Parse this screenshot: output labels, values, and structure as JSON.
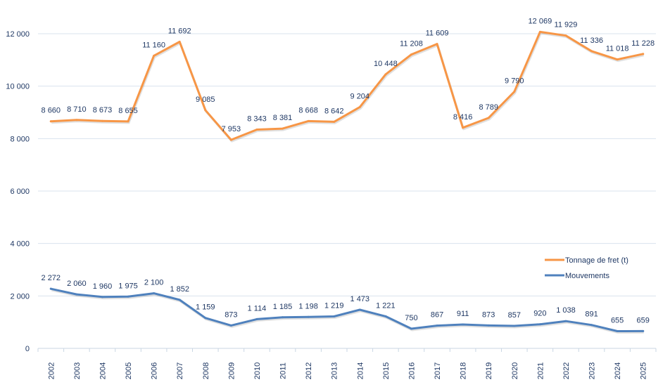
{
  "chart_data": {
    "type": "line",
    "title": "",
    "xlabel": "",
    "ylabel": "",
    "ylim": [
      0,
      12000
    ],
    "yticks": [
      {
        "value": 0,
        "label": "0"
      },
      {
        "value": 2000,
        "label": "2 000"
      },
      {
        "value": 4000,
        "label": "4 000"
      },
      {
        "value": 6000,
        "label": "6 000"
      },
      {
        "value": 8000,
        "label": "8 000"
      },
      {
        "value": 10000,
        "label": "10 000"
      },
      {
        "value": 12000,
        "label": "12 000"
      }
    ],
    "grid": true,
    "legend_position": "right",
    "categories": [
      "2002",
      "2003",
      "2004",
      "2005",
      "2006",
      "2007",
      "2008",
      "2009",
      "2010",
      "2011",
      "2012",
      "2013",
      "2014",
      "2015",
      "2016",
      "2017",
      "2018",
      "2019",
      "2020",
      "2021",
      "2022",
      "2023",
      "2024",
      "2025"
    ],
    "series": [
      {
        "name": "Tonnage de fret (t)",
        "color": "#f79646",
        "values": [
          8660,
          8710,
          8673,
          8655,
          11160,
          11692,
          9085,
          7953,
          8343,
          8381,
          8668,
          8642,
          9204,
          10448,
          11208,
          11609,
          8416,
          8789,
          9790,
          12069,
          11929,
          11336,
          11018,
          11228
        ],
        "labels": [
          "8 660",
          "8 710",
          "8 673",
          "8 655",
          "11 160",
          "11 692",
          "9 085",
          "7 953",
          "8 343",
          "8 381",
          "8 668",
          "8 642",
          "9 204",
          "10 448",
          "11 208",
          "11 609",
          "8 416",
          "8 789",
          "9 790",
          "12 069",
          "11 929",
          "11 336",
          "11 018",
          "11 228"
        ]
      },
      {
        "name": "Mouvements",
        "color": "#4f81bd",
        "values": [
          2272,
          2060,
          1960,
          1975,
          2100,
          1852,
          1159,
          873,
          1114,
          1185,
          1198,
          1219,
          1473,
          1221,
          750,
          867,
          911,
          873,
          857,
          920,
          1038,
          891,
          655,
          659
        ],
        "labels": [
          "2 272",
          "2 060",
          "1 960",
          "1 975",
          "2 100",
          "1 852",
          "1 159",
          "873",
          "1 114",
          "1 185",
          "1 198",
          "1 219",
          "1 473",
          "1 221",
          "750",
          "867",
          "911",
          "873",
          "857",
          "920",
          "1 038",
          "891",
          "655",
          "659"
        ]
      }
    ]
  }
}
